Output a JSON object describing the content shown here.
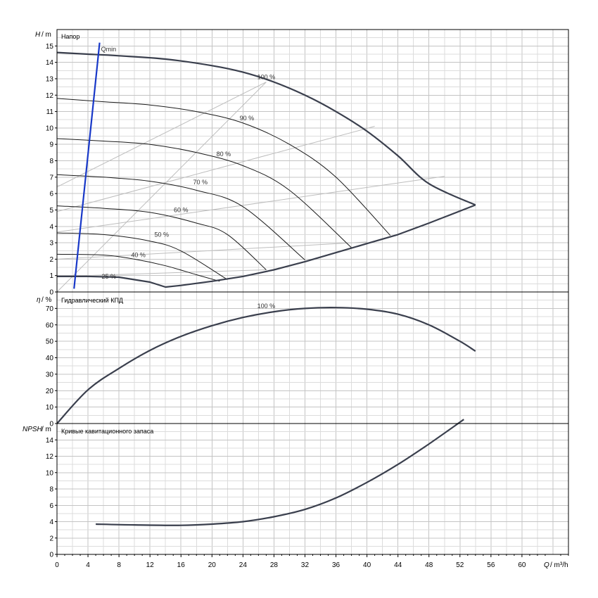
{
  "chart_data": [
    {
      "type": "line",
      "title": "Напор",
      "ylabel_symbol": "H",
      "ylabel_unit": "/ m",
      "xlim": [
        0,
        66
      ],
      "ylim": [
        0,
        16
      ],
      "yticks": [
        0,
        1,
        2,
        3,
        4,
        5,
        6,
        7,
        8,
        9,
        10,
        11,
        12,
        13,
        14,
        15
      ],
      "max_curve": {
        "name": "100 %",
        "x": [
          0,
          4,
          8,
          14,
          20,
          24,
          28,
          32,
          36,
          40,
          44,
          48,
          54
        ],
        "y": [
          14.6,
          14.5,
          14.4,
          14.2,
          13.8,
          13.4,
          12.8,
          12.0,
          11.0,
          9.8,
          8.3,
          6.6,
          5.3
        ]
      },
      "min_curve": {
        "x": [
          0,
          4,
          8,
          12,
          14,
          16,
          20,
          24,
          28,
          32,
          36,
          40,
          44,
          48,
          54
        ],
        "y": [
          0.95,
          0.95,
          0.9,
          0.6,
          0.3,
          0.4,
          0.65,
          0.95,
          1.35,
          1.85,
          2.4,
          2.95,
          3.5,
          4.2,
          5.3
        ]
      },
      "speed_curves": [
        {
          "name": "90 %",
          "x": [
            0,
            6,
            12,
            18,
            24,
            30,
            36,
            43
          ],
          "y": [
            11.8,
            11.6,
            11.4,
            11.0,
            10.3,
            9.0,
            7.0,
            3.45
          ]
        },
        {
          "name": "80 %",
          "x": [
            0,
            6,
            12,
            18,
            24,
            30,
            38
          ],
          "y": [
            9.35,
            9.2,
            9.0,
            8.5,
            7.7,
            6.2,
            2.7
          ]
        },
        {
          "name": "70 %",
          "x": [
            0,
            6,
            12,
            18,
            24,
            32
          ],
          "y": [
            7.15,
            7.0,
            6.75,
            6.2,
            5.2,
            1.95
          ]
        },
        {
          "name": "60 %",
          "x": [
            0,
            6,
            12,
            18,
            22,
            27
          ],
          "y": [
            5.25,
            5.1,
            4.85,
            4.2,
            3.5,
            1.35
          ]
        },
        {
          "name": "50 %",
          "x": [
            0,
            6,
            12,
            16,
            22
          ],
          "y": [
            3.6,
            3.5,
            3.1,
            2.5,
            0.75
          ]
        },
        {
          "name": "40 %",
          "x": [
            0,
            6,
            10,
            14,
            18,
            21
          ],
          "y": [
            2.3,
            2.25,
            2.0,
            1.6,
            1.05,
            0.65
          ]
        },
        {
          "name": "25 %",
          "x": [
            0,
            4,
            8,
            12
          ],
          "y": [
            0.95,
            0.95,
            0.9,
            0.6
          ]
        }
      ],
      "efficiency_lines": [
        {
          "x": [
            0,
            27
          ],
          "y": [
            0,
            12.8
          ]
        },
        {
          "x": [
            0,
            27
          ],
          "y": [
            6.4,
            12.8
          ]
        },
        {
          "x": [
            0,
            41
          ],
          "y": [
            4.9,
            10.1
          ]
        },
        {
          "x": [
            0,
            50
          ],
          "y": [
            3.65,
            7.05
          ]
        },
        {
          "x": [
            0,
            40
          ],
          "y": [
            2.0,
            3.05
          ]
        },
        {
          "x": [
            0,
            27
          ],
          "y": [
            0.95,
            1.35
          ]
        }
      ],
      "qmin": {
        "label": "Qmin",
        "x": [
          2.2,
          5.5
        ],
        "y": [
          0.2,
          15.2
        ]
      },
      "labels": [
        {
          "text": "100 %",
          "x": 27,
          "y": 13.1
        },
        {
          "text": "90 %",
          "x": 24.5,
          "y": 10.6
        },
        {
          "text": "80 %",
          "x": 21.5,
          "y": 8.4
        },
        {
          "text": "70 %",
          "x": 18.5,
          "y": 6.7
        },
        {
          "text": "60 %",
          "x": 16,
          "y": 5.0
        },
        {
          "text": "50 %",
          "x": 13.5,
          "y": 3.5
        },
        {
          "text": "40 %",
          "x": 10.5,
          "y": 2.25
        },
        {
          "text": "25 %",
          "x": 6.7,
          "y": 0.95
        }
      ]
    },
    {
      "type": "line",
      "title": "Гидравлический КПД",
      "ylabel_symbol": "η",
      "ylabel_unit": "/ %",
      "xlim": [
        0,
        66
      ],
      "ylim": [
        0,
        80
      ],
      "yticks": [
        0,
        10,
        20,
        30,
        40,
        50,
        60,
        70
      ],
      "series": [
        {
          "name": "100 %",
          "x": [
            0,
            4,
            8,
            12,
            16,
            20,
            24,
            28,
            32,
            36,
            40,
            44,
            48,
            52,
            54
          ],
          "y": [
            0,
            20.5,
            33.5,
            44.5,
            53,
            59.5,
            64.5,
            68,
            70,
            70.5,
            69.5,
            66.5,
            60,
            50,
            44
          ]
        }
      ],
      "labels": [
        {
          "text": "100 %",
          "x": 27,
          "y": 71.5
        }
      ]
    },
    {
      "type": "line",
      "title": "Кривые кавитационного запаса",
      "ylabel_symbol": "NPSH",
      "ylabel_unit": "/ m",
      "xlabel_symbol": "Q",
      "xlabel_unit": "/ m³/h",
      "xlim": [
        0,
        66
      ],
      "ylim": [
        0,
        16
      ],
      "yticks": [
        0,
        2,
        4,
        6,
        8,
        10,
        12,
        14
      ],
      "xticks": [
        0,
        4,
        8,
        12,
        16,
        20,
        24,
        28,
        32,
        36,
        40,
        44,
        48,
        52,
        56,
        60
      ],
      "series": [
        {
          "x": [
            5,
            10,
            16,
            20,
            24,
            28,
            32,
            36,
            40,
            44,
            48,
            52.5
          ],
          "y": [
            3.7,
            3.6,
            3.55,
            3.7,
            4.0,
            4.6,
            5.5,
            6.9,
            8.8,
            11.0,
            13.5,
            16.5
          ]
        }
      ]
    }
  ]
}
